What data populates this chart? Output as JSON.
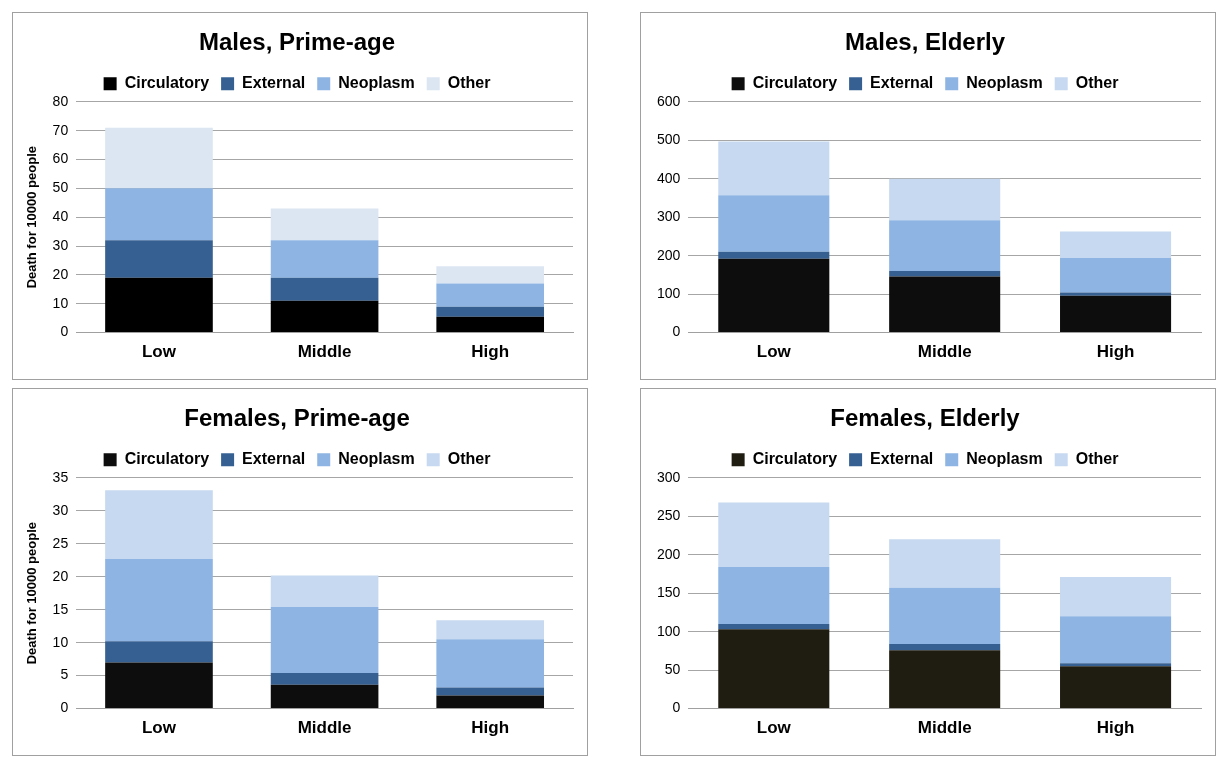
{
  "chart_data": [
    {
      "type": "bar",
      "title": "Males, Prime-age",
      "ylabel": "Death for 10000 people",
      "categories": [
        "Low",
        "Middle",
        "High"
      ],
      "stacked": true,
      "legend": "top",
      "grid": "y",
      "ylim": [
        0,
        80
      ],
      "yticks": [
        0,
        10,
        20,
        30,
        40,
        50,
        60,
        70,
        80
      ],
      "series": [
        {
          "name": "Circulatory",
          "color": "#000000",
          "values": [
            19,
            11,
            5.5
          ]
        },
        {
          "name": "External",
          "color": "#376092",
          "values": [
            13,
            8,
            3.5
          ]
        },
        {
          "name": "Neoplasm",
          "color": "#8eb4e3",
          "values": [
            18,
            13,
            8
          ]
        },
        {
          "name": "Other",
          "color": "#dce6f2",
          "values": [
            21,
            11,
            6
          ]
        }
      ]
    },
    {
      "type": "bar",
      "title": "Males, Elderly",
      "categories": [
        "Low",
        "Middle",
        "High"
      ],
      "stacked": true,
      "legend": "top",
      "grid": "y",
      "ylim": [
        0,
        600
      ],
      "yticks": [
        0,
        100,
        200,
        300,
        400,
        500,
        600
      ],
      "series": [
        {
          "name": "Circulatory",
          "color": "#0d0d0d",
          "values": [
            192,
            146,
            96
          ]
        },
        {
          "name": "External",
          "color": "#376092",
          "values": [
            18,
            14,
            8
          ]
        },
        {
          "name": "Neoplasm",
          "color": "#8eb4e3",
          "values": [
            147,
            132,
            90
          ]
        },
        {
          "name": "Other",
          "color": "#c6d9f0",
          "values": [
            140,
            108,
            69
          ]
        }
      ]
    },
    {
      "type": "bar",
      "title": "Females, Prime-age",
      "ylabel": "Death for 10000 people",
      "categories": [
        "Low",
        "Middle",
        "High"
      ],
      "stacked": true,
      "legend": "top",
      "grid": "y",
      "ylim": [
        0,
        35
      ],
      "yticks": [
        0,
        5,
        10,
        15,
        20,
        25,
        30,
        35
      ],
      "series": [
        {
          "name": "Circulatory",
          "color": "#0d0d0d",
          "values": [
            7,
            3.6,
            2
          ]
        },
        {
          "name": "External",
          "color": "#376092",
          "values": [
            3.2,
            1.8,
            1.2
          ]
        },
        {
          "name": "Neoplasm",
          "color": "#8eb4e3",
          "values": [
            12.5,
            10,
            7.3
          ]
        },
        {
          "name": "Other",
          "color": "#c6d9f0",
          "values": [
            10.4,
            4.8,
            2.9
          ]
        }
      ]
    },
    {
      "type": "bar",
      "title": "Females, Elderly",
      "categories": [
        "Low",
        "Middle",
        "High"
      ],
      "stacked": true,
      "legend": "top",
      "grid": "y",
      "ylim": [
        0,
        300
      ],
      "yticks": [
        0,
        50,
        100,
        150,
        200,
        250,
        300
      ],
      "series": [
        {
          "name": "Circulatory",
          "color": "#1f1c12",
          "values": [
            103,
            76,
            55
          ]
        },
        {
          "name": "External",
          "color": "#376092",
          "values": [
            7,
            8,
            4
          ]
        },
        {
          "name": "Neoplasm",
          "color": "#8eb4e3",
          "values": [
            74,
            73,
            61
          ]
        },
        {
          "name": "Other",
          "color": "#c6d9f0",
          "values": [
            84,
            63,
            51
          ]
        }
      ]
    }
  ]
}
